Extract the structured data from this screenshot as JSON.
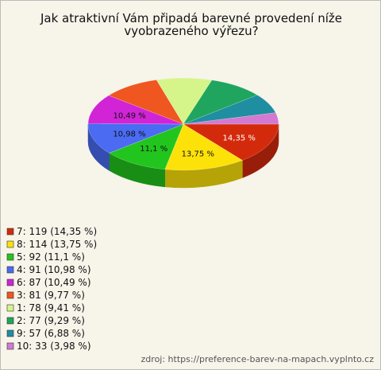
{
  "chart_data": {
    "type": "pie3d",
    "title": "Jak atraktivní Vám připadá barevné provedení níže vyobrazeného výřezu?",
    "categories": [
      "7",
      "8",
      "5",
      "4",
      "6",
      "3",
      "1",
      "2",
      "9",
      "10"
    ],
    "values": [
      14.35,
      13.75,
      11.1,
      10.98,
      10.49,
      9.77,
      9.41,
      9.29,
      6.88,
      3.98
    ],
    "value_labels": [
      "14,35 %",
      "13,75 %",
      "11,1 %",
      "10,98 %",
      "10,49 %",
      null,
      null,
      null,
      null,
      null
    ],
    "legend_labels": [
      "7: 119 (14,35 %)",
      "8: 114 (13,75 %)",
      "5: 92 (11,1 %)",
      "4: 91 (10,98 %)",
      "6: 87 (10,49 %)",
      "3: 81 (9,77 %)",
      "1: 78 (9,41 %)",
      "2: 77 (9,29 %)",
      "9: 57 (6,88 %)",
      "10: 33 (3,98 %)"
    ],
    "colors": [
      "#d42a0c",
      "#fde20a",
      "#22c51d",
      "#4a6bf2",
      "#d024d6",
      "#f0561f",
      "#d5f58a",
      "#1fa55e",
      "#1f8ea0",
      "#d27ad0"
    ],
    "source": "zdroj: https://preference-barev-na-mapach.vyplnto.cz"
  }
}
